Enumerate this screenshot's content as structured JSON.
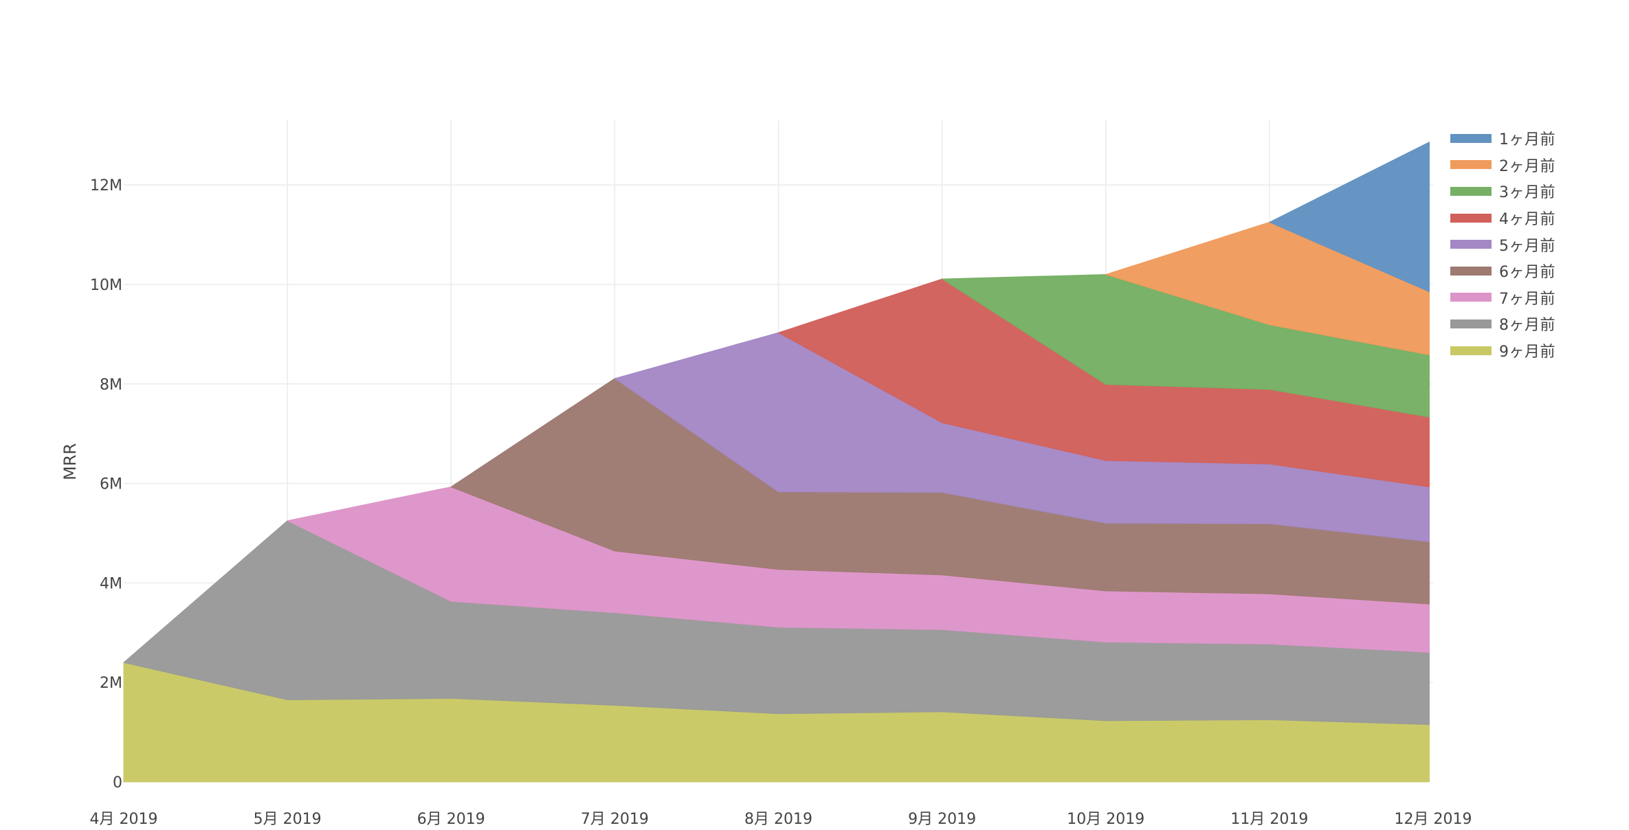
{
  "chart_data": {
    "type": "area",
    "stacked": true,
    "ylabel": "MRR",
    "xlabel": "",
    "x": [
      "4月 2019",
      "5月 2019",
      "6月 2019",
      "7月 2019",
      "8月 2019",
      "9月 2019",
      "10月 2019",
      "11月 2019",
      "12月 2019"
    ],
    "x_tick_labels": [
      "4月 2019",
      "5月 2019",
      "6月 2019",
      "7月 2019",
      "8月 2019",
      "9月 2019",
      "10月 2019",
      "11月 2019",
      "12月 2019"
    ],
    "ylim": [
      0,
      13300000
    ],
    "y_ticks": [
      0,
      2000000,
      4000000,
      6000000,
      8000000,
      10000000,
      12000000
    ],
    "y_tick_labels": [
      "0",
      "2M",
      "4M",
      "6M",
      "8M",
      "10M",
      "12M"
    ],
    "grid": true,
    "legend_position": "right",
    "series": [
      {
        "name": "9ヶ月前",
        "color": "#c8c864",
        "values": [
          2400000,
          1650000,
          1680000,
          1540000,
          1370000,
          1410000,
          1230000,
          1250000,
          1150000
        ]
      },
      {
        "name": "8ヶ月前",
        "color": "#999999",
        "values": [
          null,
          3600000,
          1950000,
          1860000,
          1740000,
          1650000,
          1580000,
          1520000,
          1450000
        ]
      },
      {
        "name": "7ヶ月前",
        "color": "#dd94c9",
        "values": [
          null,
          null,
          2300000,
          1240000,
          1160000,
          1100000,
          1030000,
          1010000,
          970000
        ]
      },
      {
        "name": "6ヶ月前",
        "color": "#9e7a71",
        "values": [
          null,
          null,
          null,
          3470000,
          1560000,
          1660000,
          1360000,
          1410000,
          1250000
        ]
      },
      {
        "name": "5ヶ月前",
        "color": "#a488c5",
        "values": [
          null,
          null,
          null,
          null,
          3200000,
          1400000,
          1260000,
          1200000,
          1100000
        ]
      },
      {
        "name": "4ヶ月前",
        "color": "#d2605b",
        "values": [
          null,
          null,
          null,
          null,
          null,
          2890000,
          1530000,
          1500000,
          1400000
        ]
      },
      {
        "name": "3ヶ月前",
        "color": "#75b063",
        "values": [
          null,
          null,
          null,
          null,
          null,
          null,
          2210000,
          1300000,
          1250000
        ]
      },
      {
        "name": "2ヶ月前",
        "color": "#f09b5c",
        "values": [
          null,
          null,
          null,
          null,
          null,
          null,
          null,
          2060000,
          1250000
        ]
      },
      {
        "name": "1ヶ月前",
        "color": "#6292c1",
        "values": [
          null,
          null,
          null,
          null,
          null,
          null,
          null,
          null,
          3080000
        ]
      }
    ]
  }
}
